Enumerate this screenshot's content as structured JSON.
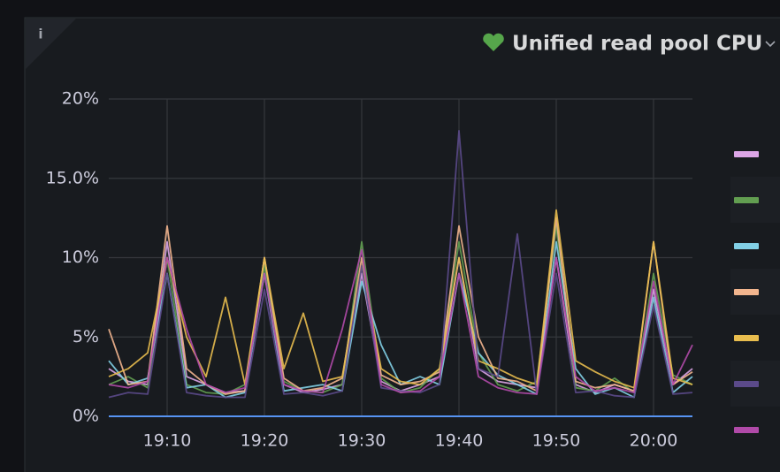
{
  "chart_data": {
    "type": "line",
    "title": "Unified read pool CPU",
    "x": [
      "19:04",
      "19:06",
      "19:08",
      "19:10",
      "19:12",
      "19:14",
      "19:16",
      "19:18",
      "19:20",
      "19:22",
      "19:24",
      "19:26",
      "19:28",
      "19:30",
      "19:32",
      "19:34",
      "19:36",
      "19:38",
      "19:40",
      "19:42",
      "19:44",
      "19:46",
      "19:48",
      "19:50",
      "19:52",
      "19:54",
      "19:56",
      "19:58",
      "20:00",
      "20:02",
      "20:04"
    ],
    "xlim": [
      "19:04",
      "20:04"
    ],
    "xticks": [
      "19:10",
      "19:20",
      "19:30",
      "19:40",
      "19:50",
      "20:00"
    ],
    "ylim": [
      0,
      20
    ],
    "yticks": [
      {
        "value": 0,
        "label": "0%"
      },
      {
        "value": 5,
        "label": "5%"
      },
      {
        "value": 10,
        "label": "10%"
      },
      {
        "value": 15,
        "label": "15.0%"
      },
      {
        "value": 20,
        "label": "20%"
      }
    ],
    "grid": true,
    "legend": "right",
    "series": [
      {
        "color": "#dca5e6",
        "values": [
          3,
          2.2,
          2,
          11,
          2.5,
          2,
          1.5,
          1.6,
          10,
          2,
          1.5,
          1.7,
          2,
          9,
          2.2,
          1.6,
          2,
          2.5,
          10,
          3,
          2.2,
          2,
          1.8,
          10,
          2,
          1.5,
          2,
          1.6,
          8,
          2,
          3
        ]
      },
      {
        "color": "#629e51",
        "values": [
          2,
          2.5,
          1.8,
          10,
          2,
          1.5,
          1.4,
          2,
          9.5,
          2.2,
          1.6,
          1.5,
          2,
          11,
          2.4,
          1.5,
          1.8,
          3,
          11,
          4,
          2,
          1.6,
          2.2,
          12,
          1.8,
          1.6,
          2.4,
          1.5,
          9,
          2.6,
          2
        ]
      },
      {
        "color": "#82d0e6",
        "values": [
          3.5,
          2,
          2.4,
          9,
          1.8,
          2,
          1.2,
          1.5,
          9,
          1.6,
          1.8,
          2,
          1.6,
          8.5,
          4.5,
          2,
          2.5,
          2,
          9,
          4,
          2.6,
          2,
          1.4,
          11,
          3,
          1.4,
          1.8,
          1.2,
          7.5,
          1.5,
          2.5
        ]
      },
      {
        "color": "#f2b58e",
        "values": [
          5.5,
          2,
          2.2,
          12,
          3,
          2,
          1.4,
          1.6,
          10,
          2.4,
          1.6,
          1.8,
          2.4,
          10,
          2.6,
          2,
          2.2,
          2.8,
          12,
          5,
          2.4,
          2.2,
          1.6,
          12.5,
          2.2,
          1.8,
          2,
          1.6,
          11,
          2,
          2.8
        ]
      },
      {
        "color": "#e8bd4e",
        "values": [
          2.5,
          3,
          4,
          10,
          5,
          2.5,
          7.5,
          2,
          10,
          3,
          6.5,
          2.2,
          2.5,
          9.5,
          3,
          2.2,
          2,
          3,
          10,
          3.5,
          3,
          2.4,
          2,
          13,
          3.5,
          2.8,
          2.2,
          1.8,
          11,
          2.4,
          2
        ]
      },
      {
        "color": "#5b4a8a",
        "values": [
          1.2,
          1.5,
          1.4,
          9,
          1.5,
          1.3,
          1.2,
          1.2,
          8,
          1.4,
          1.5,
          1.3,
          1.6,
          9.5,
          1.8,
          1.6,
          1.5,
          2,
          18,
          3,
          2.5,
          11.5,
          1.4,
          9,
          1.5,
          1.6,
          1.3,
          1.2,
          7,
          1.4,
          1.5
        ]
      },
      {
        "color": "#b04aa8",
        "values": [
          2,
          1.8,
          2.2,
          10,
          5.5,
          2,
          1.5,
          1.8,
          9,
          2,
          1.6,
          1.5,
          5.5,
          10.5,
          2,
          1.5,
          1.6,
          2.5,
          9,
          2.5,
          1.8,
          1.5,
          1.4,
          10,
          2.5,
          1.6,
          1.8,
          1.5,
          8.5,
          2,
          4.5
        ]
      }
    ]
  }
}
